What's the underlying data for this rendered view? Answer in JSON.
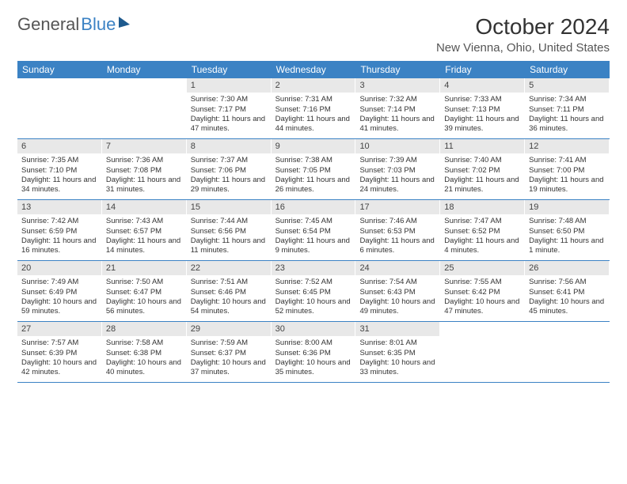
{
  "logo": {
    "part1": "General",
    "part2": "Blue"
  },
  "title": "October 2024",
  "location": "New Vienna, Ohio, United States",
  "colors": {
    "header_bg": "#3b82c4",
    "daynum_bg": "#e8e8e8",
    "text": "#333333",
    "border": "#3b82c4"
  },
  "dow": [
    "Sunday",
    "Monday",
    "Tuesday",
    "Wednesday",
    "Thursday",
    "Friday",
    "Saturday"
  ],
  "weeks": [
    [
      null,
      null,
      {
        "n": "1",
        "sr": "Sunrise: 7:30 AM",
        "ss": "Sunset: 7:17 PM",
        "dl": "Daylight: 11 hours and 47 minutes."
      },
      {
        "n": "2",
        "sr": "Sunrise: 7:31 AM",
        "ss": "Sunset: 7:16 PM",
        "dl": "Daylight: 11 hours and 44 minutes."
      },
      {
        "n": "3",
        "sr": "Sunrise: 7:32 AM",
        "ss": "Sunset: 7:14 PM",
        "dl": "Daylight: 11 hours and 41 minutes."
      },
      {
        "n": "4",
        "sr": "Sunrise: 7:33 AM",
        "ss": "Sunset: 7:13 PM",
        "dl": "Daylight: 11 hours and 39 minutes."
      },
      {
        "n": "5",
        "sr": "Sunrise: 7:34 AM",
        "ss": "Sunset: 7:11 PM",
        "dl": "Daylight: 11 hours and 36 minutes."
      }
    ],
    [
      {
        "n": "6",
        "sr": "Sunrise: 7:35 AM",
        "ss": "Sunset: 7:10 PM",
        "dl": "Daylight: 11 hours and 34 minutes."
      },
      {
        "n": "7",
        "sr": "Sunrise: 7:36 AM",
        "ss": "Sunset: 7:08 PM",
        "dl": "Daylight: 11 hours and 31 minutes."
      },
      {
        "n": "8",
        "sr": "Sunrise: 7:37 AM",
        "ss": "Sunset: 7:06 PM",
        "dl": "Daylight: 11 hours and 29 minutes."
      },
      {
        "n": "9",
        "sr": "Sunrise: 7:38 AM",
        "ss": "Sunset: 7:05 PM",
        "dl": "Daylight: 11 hours and 26 minutes."
      },
      {
        "n": "10",
        "sr": "Sunrise: 7:39 AM",
        "ss": "Sunset: 7:03 PM",
        "dl": "Daylight: 11 hours and 24 minutes."
      },
      {
        "n": "11",
        "sr": "Sunrise: 7:40 AM",
        "ss": "Sunset: 7:02 PM",
        "dl": "Daylight: 11 hours and 21 minutes."
      },
      {
        "n": "12",
        "sr": "Sunrise: 7:41 AM",
        "ss": "Sunset: 7:00 PM",
        "dl": "Daylight: 11 hours and 19 minutes."
      }
    ],
    [
      {
        "n": "13",
        "sr": "Sunrise: 7:42 AM",
        "ss": "Sunset: 6:59 PM",
        "dl": "Daylight: 11 hours and 16 minutes."
      },
      {
        "n": "14",
        "sr": "Sunrise: 7:43 AM",
        "ss": "Sunset: 6:57 PM",
        "dl": "Daylight: 11 hours and 14 minutes."
      },
      {
        "n": "15",
        "sr": "Sunrise: 7:44 AM",
        "ss": "Sunset: 6:56 PM",
        "dl": "Daylight: 11 hours and 11 minutes."
      },
      {
        "n": "16",
        "sr": "Sunrise: 7:45 AM",
        "ss": "Sunset: 6:54 PM",
        "dl": "Daylight: 11 hours and 9 minutes."
      },
      {
        "n": "17",
        "sr": "Sunrise: 7:46 AM",
        "ss": "Sunset: 6:53 PM",
        "dl": "Daylight: 11 hours and 6 minutes."
      },
      {
        "n": "18",
        "sr": "Sunrise: 7:47 AM",
        "ss": "Sunset: 6:52 PM",
        "dl": "Daylight: 11 hours and 4 minutes."
      },
      {
        "n": "19",
        "sr": "Sunrise: 7:48 AM",
        "ss": "Sunset: 6:50 PM",
        "dl": "Daylight: 11 hours and 1 minute."
      }
    ],
    [
      {
        "n": "20",
        "sr": "Sunrise: 7:49 AM",
        "ss": "Sunset: 6:49 PM",
        "dl": "Daylight: 10 hours and 59 minutes."
      },
      {
        "n": "21",
        "sr": "Sunrise: 7:50 AM",
        "ss": "Sunset: 6:47 PM",
        "dl": "Daylight: 10 hours and 56 minutes."
      },
      {
        "n": "22",
        "sr": "Sunrise: 7:51 AM",
        "ss": "Sunset: 6:46 PM",
        "dl": "Daylight: 10 hours and 54 minutes."
      },
      {
        "n": "23",
        "sr": "Sunrise: 7:52 AM",
        "ss": "Sunset: 6:45 PM",
        "dl": "Daylight: 10 hours and 52 minutes."
      },
      {
        "n": "24",
        "sr": "Sunrise: 7:54 AM",
        "ss": "Sunset: 6:43 PM",
        "dl": "Daylight: 10 hours and 49 minutes."
      },
      {
        "n": "25",
        "sr": "Sunrise: 7:55 AM",
        "ss": "Sunset: 6:42 PM",
        "dl": "Daylight: 10 hours and 47 minutes."
      },
      {
        "n": "26",
        "sr": "Sunrise: 7:56 AM",
        "ss": "Sunset: 6:41 PM",
        "dl": "Daylight: 10 hours and 45 minutes."
      }
    ],
    [
      {
        "n": "27",
        "sr": "Sunrise: 7:57 AM",
        "ss": "Sunset: 6:39 PM",
        "dl": "Daylight: 10 hours and 42 minutes."
      },
      {
        "n": "28",
        "sr": "Sunrise: 7:58 AM",
        "ss": "Sunset: 6:38 PM",
        "dl": "Daylight: 10 hours and 40 minutes."
      },
      {
        "n": "29",
        "sr": "Sunrise: 7:59 AM",
        "ss": "Sunset: 6:37 PM",
        "dl": "Daylight: 10 hours and 37 minutes."
      },
      {
        "n": "30",
        "sr": "Sunrise: 8:00 AM",
        "ss": "Sunset: 6:36 PM",
        "dl": "Daylight: 10 hours and 35 minutes."
      },
      {
        "n": "31",
        "sr": "Sunrise: 8:01 AM",
        "ss": "Sunset: 6:35 PM",
        "dl": "Daylight: 10 hours and 33 minutes."
      },
      null,
      null
    ]
  ]
}
